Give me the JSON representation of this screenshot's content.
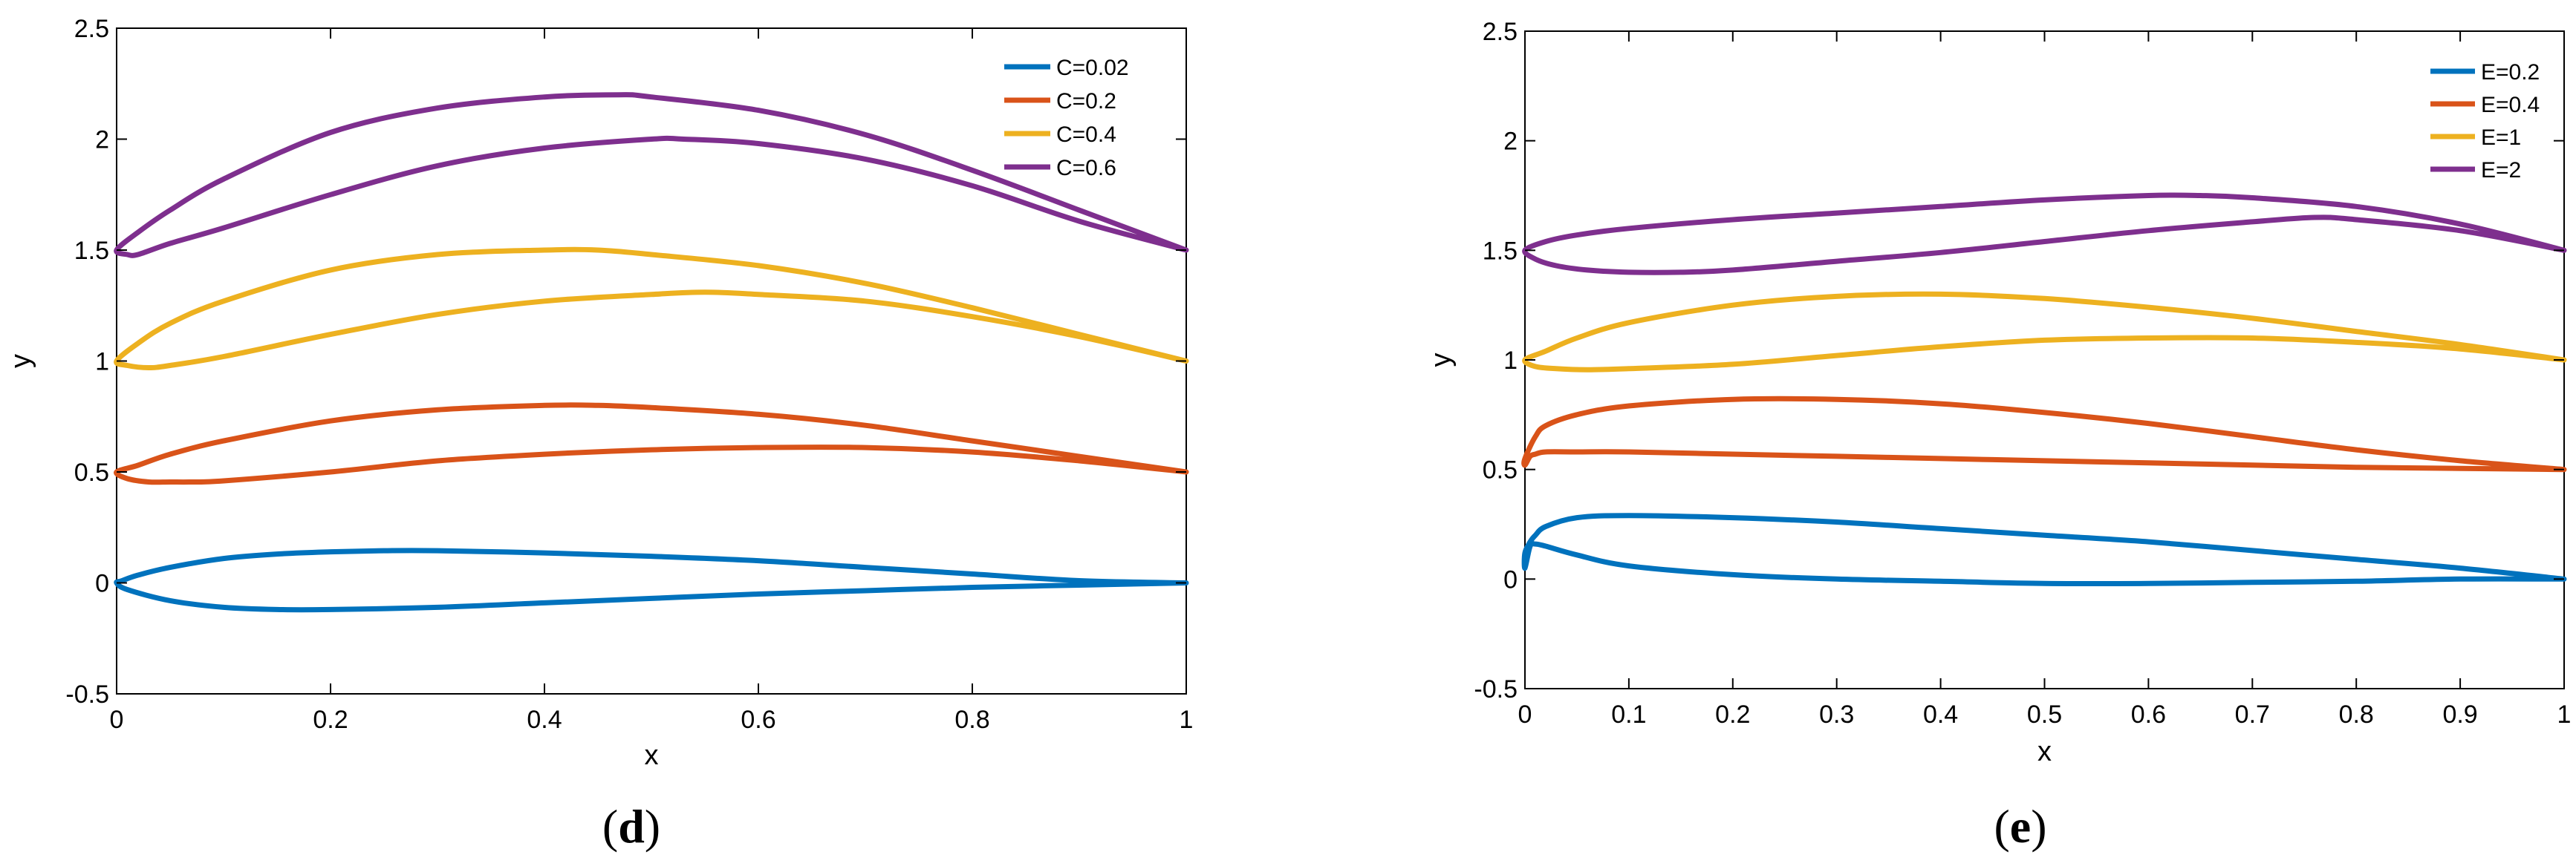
{
  "chart_data": [
    {
      "type": "line",
      "panel_label": "d",
      "xlabel": "x",
      "ylabel": "y",
      "xlim": [
        0,
        1
      ],
      "ylim": [
        -0.5,
        2.5
      ],
      "xticks": [
        0,
        0.2,
        0.4,
        0.6,
        0.8,
        1
      ],
      "xtick_labels": [
        "0",
        "0.2",
        "0.4",
        "0.6",
        "0.8",
        "1"
      ],
      "yticks": [
        -0.5,
        0,
        0.5,
        1,
        1.5,
        2,
        2.5
      ],
      "ytick_labels": [
        "-0.5",
        "0",
        "0.5",
        "1",
        "1.5",
        "2",
        "2.5"
      ],
      "legend_position": "top-right",
      "series": [
        {
          "name": "C=0.02",
          "color": "#0072BD",
          "x": [
            1,
            0.9,
            0.8,
            0.7,
            0.6,
            0.5,
            0.4,
            0.3,
            0.25,
            0.2,
            0.15,
            0.1,
            0.05,
            0.02,
            0.005,
            0,
            0.01,
            0.05,
            0.1,
            0.15,
            0.2,
            0.3,
            0.4,
            0.5,
            0.6,
            0.7,
            0.8,
            0.9,
            1
          ],
          "y": [
            0,
            0.01,
            0.04,
            0.07,
            0.1,
            0.12,
            0.135,
            0.145,
            0.145,
            0.14,
            0.13,
            0.11,
            0.07,
            0.035,
            0.01,
            0,
            -0.03,
            -0.08,
            -0.11,
            -0.12,
            -0.12,
            -0.11,
            -0.09,
            -0.07,
            -0.05,
            -0.035,
            -0.02,
            -0.01,
            0
          ]
        },
        {
          "name": "C=0.2",
          "color": "#D95319",
          "x": [
            1,
            0.9,
            0.8,
            0.7,
            0.6,
            0.5,
            0.45,
            0.4,
            0.3,
            0.2,
            0.1,
            0.05,
            0.02,
            0,
            0.01,
            0.03,
            0.05,
            0.07,
            0.1,
            0.2,
            0.3,
            0.4,
            0.5,
            0.6,
            0.7,
            0.8,
            0.9,
            1
          ],
          "y": [
            0.5,
            0.57,
            0.64,
            0.71,
            0.76,
            0.79,
            0.8,
            0.8,
            0.78,
            0.73,
            0.64,
            0.58,
            0.53,
            0.5,
            0.47,
            0.455,
            0.455,
            0.455,
            0.46,
            0.5,
            0.55,
            0.58,
            0.6,
            0.61,
            0.61,
            0.59,
            0.55,
            0.5
          ]
        },
        {
          "name": "C=0.4",
          "color": "#EDB120",
          "x": [
            1,
            0.9,
            0.8,
            0.7,
            0.6,
            0.5,
            0.45,
            0.4,
            0.3,
            0.2,
            0.1,
            0.05,
            0.02,
            0,
            0.01,
            0.03,
            0.05,
            0.1,
            0.2,
            0.3,
            0.4,
            0.5,
            0.55,
            0.6,
            0.7,
            0.8,
            0.9,
            1
          ],
          "y": [
            1,
            1.12,
            1.24,
            1.35,
            1.43,
            1.48,
            1.5,
            1.5,
            1.48,
            1.41,
            1.27,
            1.17,
            1.08,
            1,
            0.98,
            0.97,
            0.98,
            1.02,
            1.12,
            1.21,
            1.27,
            1.3,
            1.31,
            1.3,
            1.27,
            1.2,
            1.11,
            1
          ]
        },
        {
          "name": "C=0.6",
          "color": "#7E2F8E",
          "x": [
            1,
            0.9,
            0.8,
            0.7,
            0.6,
            0.5,
            0.47,
            0.4,
            0.3,
            0.2,
            0.1,
            0.05,
            0.02,
            0,
            0.01,
            0.02,
            0.05,
            0.1,
            0.2,
            0.3,
            0.4,
            0.5,
            0.53,
            0.6,
            0.7,
            0.8,
            0.9,
            1
          ],
          "y": [
            1.5,
            1.68,
            1.86,
            2.02,
            2.13,
            2.19,
            2.2,
            2.19,
            2.14,
            2.03,
            1.82,
            1.68,
            1.58,
            1.5,
            1.48,
            1.48,
            1.53,
            1.6,
            1.75,
            1.88,
            1.96,
            2,
            2,
            1.98,
            1.91,
            1.79,
            1.63,
            1.5
          ]
        }
      ]
    },
    {
      "type": "line",
      "panel_label": "e",
      "xlabel": "x",
      "ylabel": "y",
      "xlim": [
        0,
        1
      ],
      "ylim": [
        -0.5,
        2.5
      ],
      "xticks": [
        0,
        0.1,
        0.2,
        0.3,
        0.4,
        0.5,
        0.6,
        0.7,
        0.8,
        0.9,
        1
      ],
      "xtick_labels": [
        "0",
        "0.1",
        "0.2",
        "0.3",
        "0.4",
        "0.5",
        "0.6",
        "0.7",
        "0.8",
        "0.9",
        "1"
      ],
      "yticks": [
        -0.5,
        0,
        0.5,
        1,
        1.5,
        2,
        2.5
      ],
      "ytick_labels": [
        "-0.5",
        "0",
        "0.5",
        "1",
        "1.5",
        "2",
        "2.5"
      ],
      "legend_position": "top-right",
      "series": [
        {
          "name": "E=0.2",
          "color": "#0072BD",
          "x": [
            1,
            0.9,
            0.8,
            0.7,
            0.6,
            0.5,
            0.4,
            0.3,
            0.2,
            0.1,
            0.05,
            0.02,
            0.01,
            0.005,
            0,
            0,
            0.005,
            0.01,
            0.02,
            0.05,
            0.1,
            0.2,
            0.3,
            0.4,
            0.5,
            0.6,
            0.7,
            0.8,
            0.9,
            1
          ],
          "y": [
            0,
            0.05,
            0.09,
            0.13,
            0.17,
            0.2,
            0.23,
            0.26,
            0.28,
            0.29,
            0.28,
            0.24,
            0.2,
            0.17,
            0.12,
            0.05,
            0.15,
            0.16,
            0.15,
            0.11,
            0.06,
            0.02,
            0,
            -0.01,
            -0.02,
            -0.02,
            -0.015,
            -0.01,
            0,
            0
          ]
        },
        {
          "name": "E=0.4",
          "color": "#D95319",
          "x": [
            1,
            0.9,
            0.8,
            0.7,
            0.6,
            0.5,
            0.4,
            0.3,
            0.2,
            0.1,
            0.05,
            0.02,
            0.01,
            0,
            0,
            0.005,
            0.01,
            0.02,
            0.05,
            0.1,
            0.2,
            0.3,
            0.4,
            0.5,
            0.6,
            0.7,
            0.8,
            0.9,
            1
          ],
          "y": [
            0.5,
            0.54,
            0.59,
            0.65,
            0.71,
            0.76,
            0.8,
            0.82,
            0.82,
            0.79,
            0.75,
            0.7,
            0.65,
            0.55,
            0.52,
            0.56,
            0.57,
            0.58,
            0.58,
            0.58,
            0.57,
            0.56,
            0.55,
            0.54,
            0.53,
            0.52,
            0.51,
            0.505,
            0.5
          ]
        },
        {
          "name": "E=1",
          "color": "#EDB120",
          "x": [
            1,
            0.9,
            0.8,
            0.7,
            0.6,
            0.5,
            0.4,
            0.3,
            0.2,
            0.1,
            0.05,
            0.02,
            0,
            0.01,
            0.03,
            0.06,
            0.1,
            0.2,
            0.3,
            0.4,
            0.5,
            0.6,
            0.7,
            0.8,
            0.9,
            1
          ],
          "y": [
            1,
            1.07,
            1.13,
            1.19,
            1.24,
            1.28,
            1.3,
            1.29,
            1.25,
            1.17,
            1.1,
            1.04,
            1,
            0.97,
            0.96,
            0.955,
            0.96,
            0.98,
            1.02,
            1.06,
            1.09,
            1.1,
            1.1,
            1.08,
            1.05,
            1
          ]
        },
        {
          "name": "E=2",
          "color": "#7E2F8E",
          "x": [
            1,
            0.9,
            0.8,
            0.7,
            0.65,
            0.6,
            0.5,
            0.4,
            0.3,
            0.2,
            0.1,
            0.05,
            0.02,
            0,
            0.01,
            0.03,
            0.06,
            0.1,
            0.15,
            0.2,
            0.3,
            0.4,
            0.5,
            0.6,
            0.7,
            0.76,
            0.8,
            0.9,
            1
          ],
          "y": [
            1.5,
            1.62,
            1.7,
            1.74,
            1.75,
            1.75,
            1.73,
            1.7,
            1.67,
            1.64,
            1.6,
            1.57,
            1.54,
            1.5,
            1.46,
            1.43,
            1.41,
            1.4,
            1.4,
            1.41,
            1.45,
            1.49,
            1.54,
            1.59,
            1.63,
            1.65,
            1.64,
            1.59,
            1.5
          ]
        }
      ]
    }
  ]
}
